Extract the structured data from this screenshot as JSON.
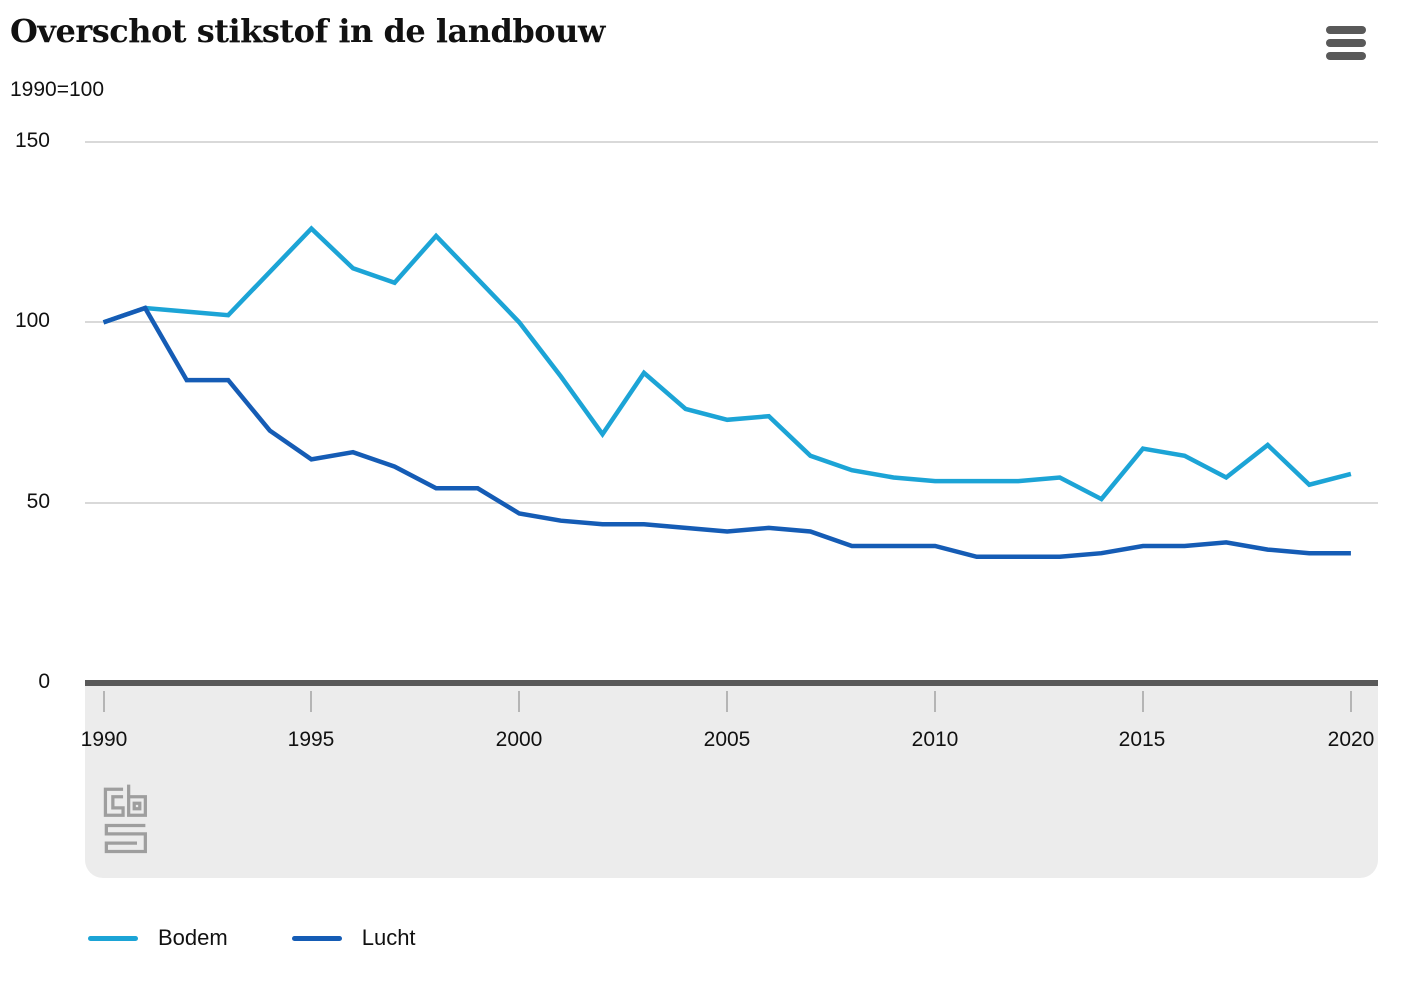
{
  "header": {
    "title": "Overschot stikstof in de landbouw",
    "subtitle": "1990=100",
    "menu_icon": "hamburger-menu-icon"
  },
  "colors": {
    "bodem_line": "#1CA4D6",
    "lucht_line": "#155CB5",
    "gridline": "#D9D9D9",
    "zero_axis": "#595959",
    "xaxis_panel": "#ECECEC",
    "logo_gray": "#9E9E9E"
  },
  "chart_data": {
    "type": "line",
    "title": "Overschot stikstof in de landbouw",
    "subtitle": "1990=100",
    "x": [
      1990,
      1991,
      1992,
      1993,
      1994,
      1995,
      1996,
      1997,
      1998,
      1999,
      2000,
      2001,
      2002,
      2003,
      2004,
      2005,
      2006,
      2007,
      2008,
      2009,
      2010,
      2011,
      2012,
      2013,
      2014,
      2015,
      2016,
      2017,
      2018,
      2019,
      2020
    ],
    "series": [
      {
        "name": "Bodem",
        "color": "#1CA4D6",
        "values": [
          100,
          104,
          103,
          102,
          114,
          126,
          115,
          111,
          124,
          112,
          100,
          85,
          69,
          86,
          76,
          73,
          74,
          63,
          59,
          57,
          56,
          56,
          56,
          57,
          51,
          65,
          63,
          57,
          66,
          55,
          58
        ]
      },
      {
        "name": "Lucht",
        "color": "#155CB5",
        "values": [
          100,
          104,
          84,
          84,
          70,
          62,
          64,
          60,
          54,
          54,
          47,
          45,
          44,
          44,
          43,
          42,
          43,
          42,
          38,
          38,
          38,
          35,
          35,
          35,
          36,
          38,
          38,
          39,
          37,
          36,
          36
        ]
      }
    ],
    "xlabel": "",
    "ylabel": "1990=100",
    "ylim": [
      0,
      150
    ],
    "yticks": [
      0,
      50,
      100,
      150
    ],
    "xticks": [
      1990,
      1995,
      2000,
      2005,
      2010,
      2015,
      2020
    ],
    "grid": true,
    "legend_position": "bottom"
  },
  "y_axis": {
    "labels": [
      "150",
      "100",
      "50",
      "0"
    ]
  },
  "x_axis": {
    "labels": [
      "1990",
      "1995",
      "2000",
      "2005",
      "2010",
      "2015",
      "2020"
    ]
  },
  "legend": [
    {
      "label": "Bodem"
    },
    {
      "label": "Lucht"
    }
  ],
  "logo": {
    "name": "cbs-logo"
  }
}
